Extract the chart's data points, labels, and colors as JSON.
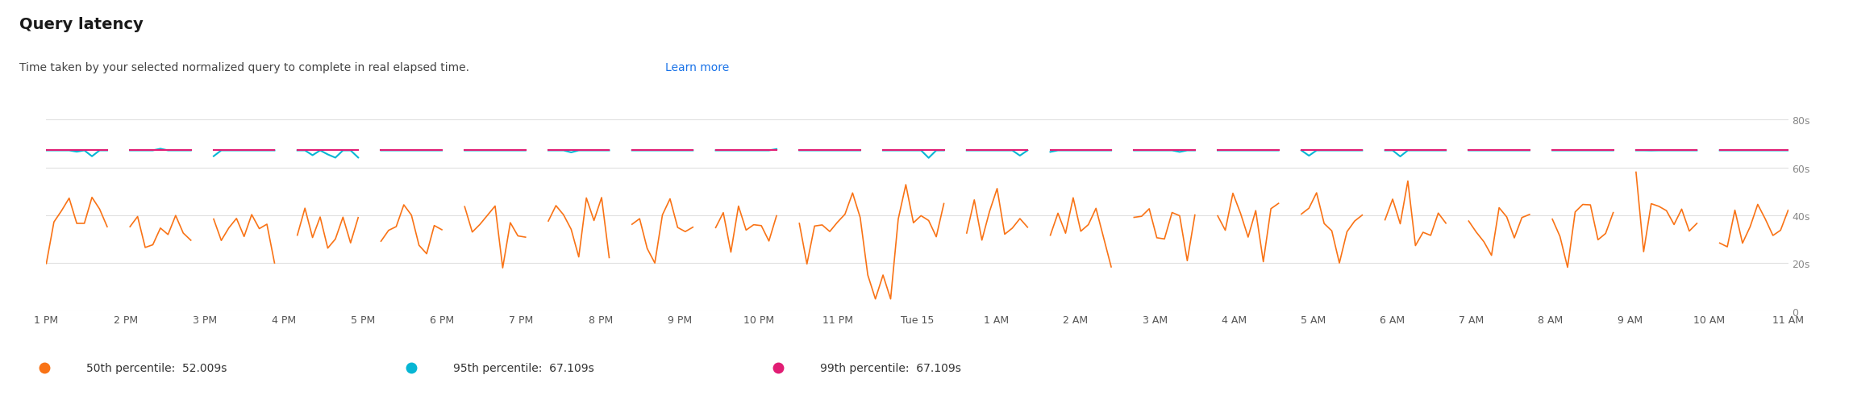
{
  "title": "Query latency",
  "subtitle": "Time taken by your selected normalized query to complete in real elapsed time.",
  "subtitle_link": "Learn more",
  "background_color": "#ffffff",
  "plot_bg_color": "#ffffff",
  "y_ticks": [
    0,
    20,
    40,
    60,
    80
  ],
  "y_tick_labels": [
    "0",
    "20s",
    "40s",
    "60s",
    "80s"
  ],
  "ylim": [
    0,
    88
  ],
  "x_tick_labels": [
    "1 PM",
    "2 PM",
    "3 PM",
    "4 PM",
    "5 PM",
    "6 PM",
    "7 PM",
    "8 PM",
    "9 PM",
    "10 PM",
    "11 PM",
    "Tue 15",
    "1 AM",
    "2 AM",
    "3 AM",
    "4 AM",
    "5 AM",
    "6 AM",
    "7 AM",
    "8 AM",
    "9 AM",
    "10 AM",
    "11 AM"
  ],
  "grid_color": "#e0e0e0",
  "line_50_color": "#f97316",
  "line_95_color": "#06b6d4",
  "line_99_color": "#e11d74",
  "legend_50": "50th percentile:  52.009s",
  "legend_95": "95th percentile:  67.109s",
  "legend_99": "99th percentile:  67.109s"
}
